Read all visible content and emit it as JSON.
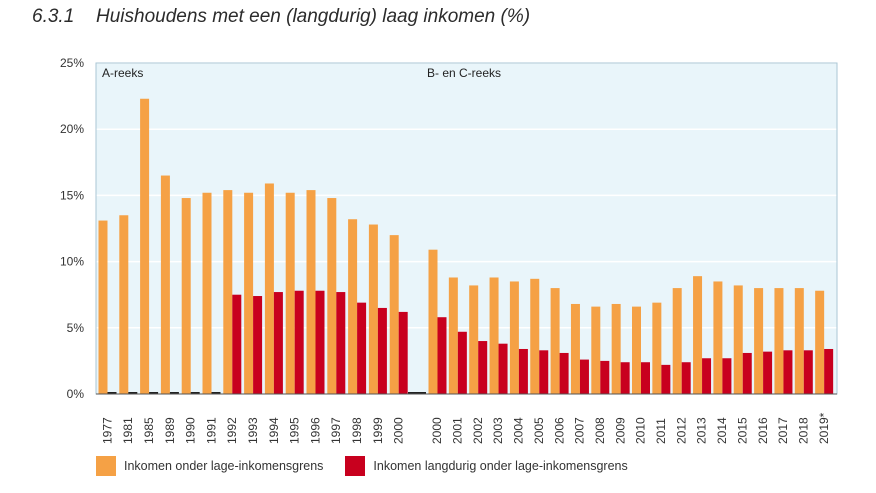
{
  "title": {
    "number": "6.3.1",
    "text": "Huishoudens met een (langdurig) laag inkomen (%)"
  },
  "colors": {
    "orange": "#F5A145",
    "red": "#C8001E",
    "panel": "#E9F5FA",
    "gap": "#1a1a1a"
  },
  "chart_data": {
    "type": "bar",
    "title": "Huishoudens met een (langdurig) laag inkomen (%)",
    "ylim": [
      0,
      25
    ],
    "yticks": [
      "0%",
      "5%",
      "10%",
      "15%",
      "20%",
      "25%"
    ],
    "grid": true,
    "legend_position": "bottom",
    "annotations": [
      "A-reeks",
      "B- en C-reeks"
    ],
    "categories": [
      "1977",
      "1981",
      "1985",
      "1989",
      "1990",
      "1991",
      "1992",
      "1993",
      "1994",
      "1995",
      "1996",
      "1997",
      "1998",
      "1999",
      "2000",
      "2000",
      "2001",
      "2002",
      "2003",
      "2004",
      "2005",
      "2006",
      "2007",
      "2008",
      "2009",
      "2010",
      "2011",
      "2012",
      "2013",
      "2014",
      "2015",
      "2016",
      "2017",
      "2018",
      "2019*"
    ],
    "series": [
      {
        "name": "Inkomen onder lage-inkomensgrens",
        "values": [
          13.1,
          13.5,
          22.3,
          16.5,
          14.8,
          15.2,
          15.4,
          15.2,
          15.9,
          15.2,
          15.4,
          14.8,
          13.2,
          12.8,
          12.0,
          10.9,
          8.8,
          8.2,
          8.8,
          8.5,
          8.7,
          8.0,
          6.8,
          6.6,
          6.8,
          6.6,
          6.9,
          8.0,
          8.9,
          8.5,
          8.2,
          8.0,
          8.0,
          8.0,
          7.8
        ]
      },
      {
        "name": "Inkomen langdurig onder lage-inkomensgrens",
        "values": [
          null,
          null,
          null,
          null,
          null,
          null,
          7.5,
          7.4,
          7.7,
          7.8,
          7.8,
          7.7,
          6.9,
          6.5,
          6.2,
          5.8,
          4.7,
          4.0,
          3.8,
          3.4,
          3.3,
          3.1,
          2.6,
          2.5,
          2.4,
          2.4,
          2.2,
          2.4,
          2.7,
          2.7,
          3.1,
          3.2,
          3.3,
          3.3,
          3.4
        ]
      }
    ]
  }
}
